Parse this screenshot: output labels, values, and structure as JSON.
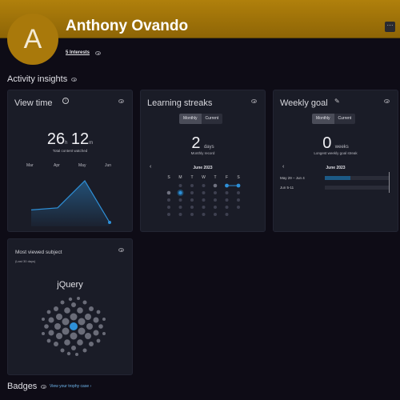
{
  "profile": {
    "initial": "A",
    "name": "Anthony Ovando",
    "interests_link": "5 Interests",
    "more_label": "···"
  },
  "activity": {
    "title": "Activity insights"
  },
  "view_time": {
    "title": "View time",
    "hours": "26",
    "hours_unit": "h",
    "minutes": "12",
    "minutes_unit": "m",
    "caption": "Total content watched",
    "months": [
      "Mar",
      "Apr",
      "May",
      "Jun"
    ],
    "values": [
      0.3,
      0.35,
      1.0,
      0.0
    ]
  },
  "learning_streaks": {
    "title": "Learning streaks",
    "toggle": [
      "Monthly",
      "Current"
    ],
    "count": "2",
    "unit": "days",
    "caption": "Monthly record",
    "calendar_month": "June 2023",
    "weekdays": [
      "S",
      "M",
      "T",
      "W",
      "T",
      "F",
      "S"
    ]
  },
  "weekly_goal": {
    "title": "Weekly goal",
    "toggle": [
      "Monthly",
      "Current"
    ],
    "count": "0",
    "unit": "weeks",
    "caption": "Longest weekly goal streak",
    "calendar_month": "June 2023",
    "rows": [
      {
        "label": "May 29 – Jun 4",
        "progress": 0.4
      },
      {
        "label": "Jun 5-11",
        "progress": 0.0
      }
    ]
  },
  "most_viewed": {
    "title": "Most viewed subject",
    "subtitle": "(Last 30 days)",
    "subject": "jQuery"
  },
  "badges": {
    "title": "Badges",
    "link": "View your trophy case",
    "link_arrow": "›"
  },
  "colors": {
    "header": "#a9790b",
    "accent": "#2e90d8",
    "card": "#1a1c27"
  }
}
